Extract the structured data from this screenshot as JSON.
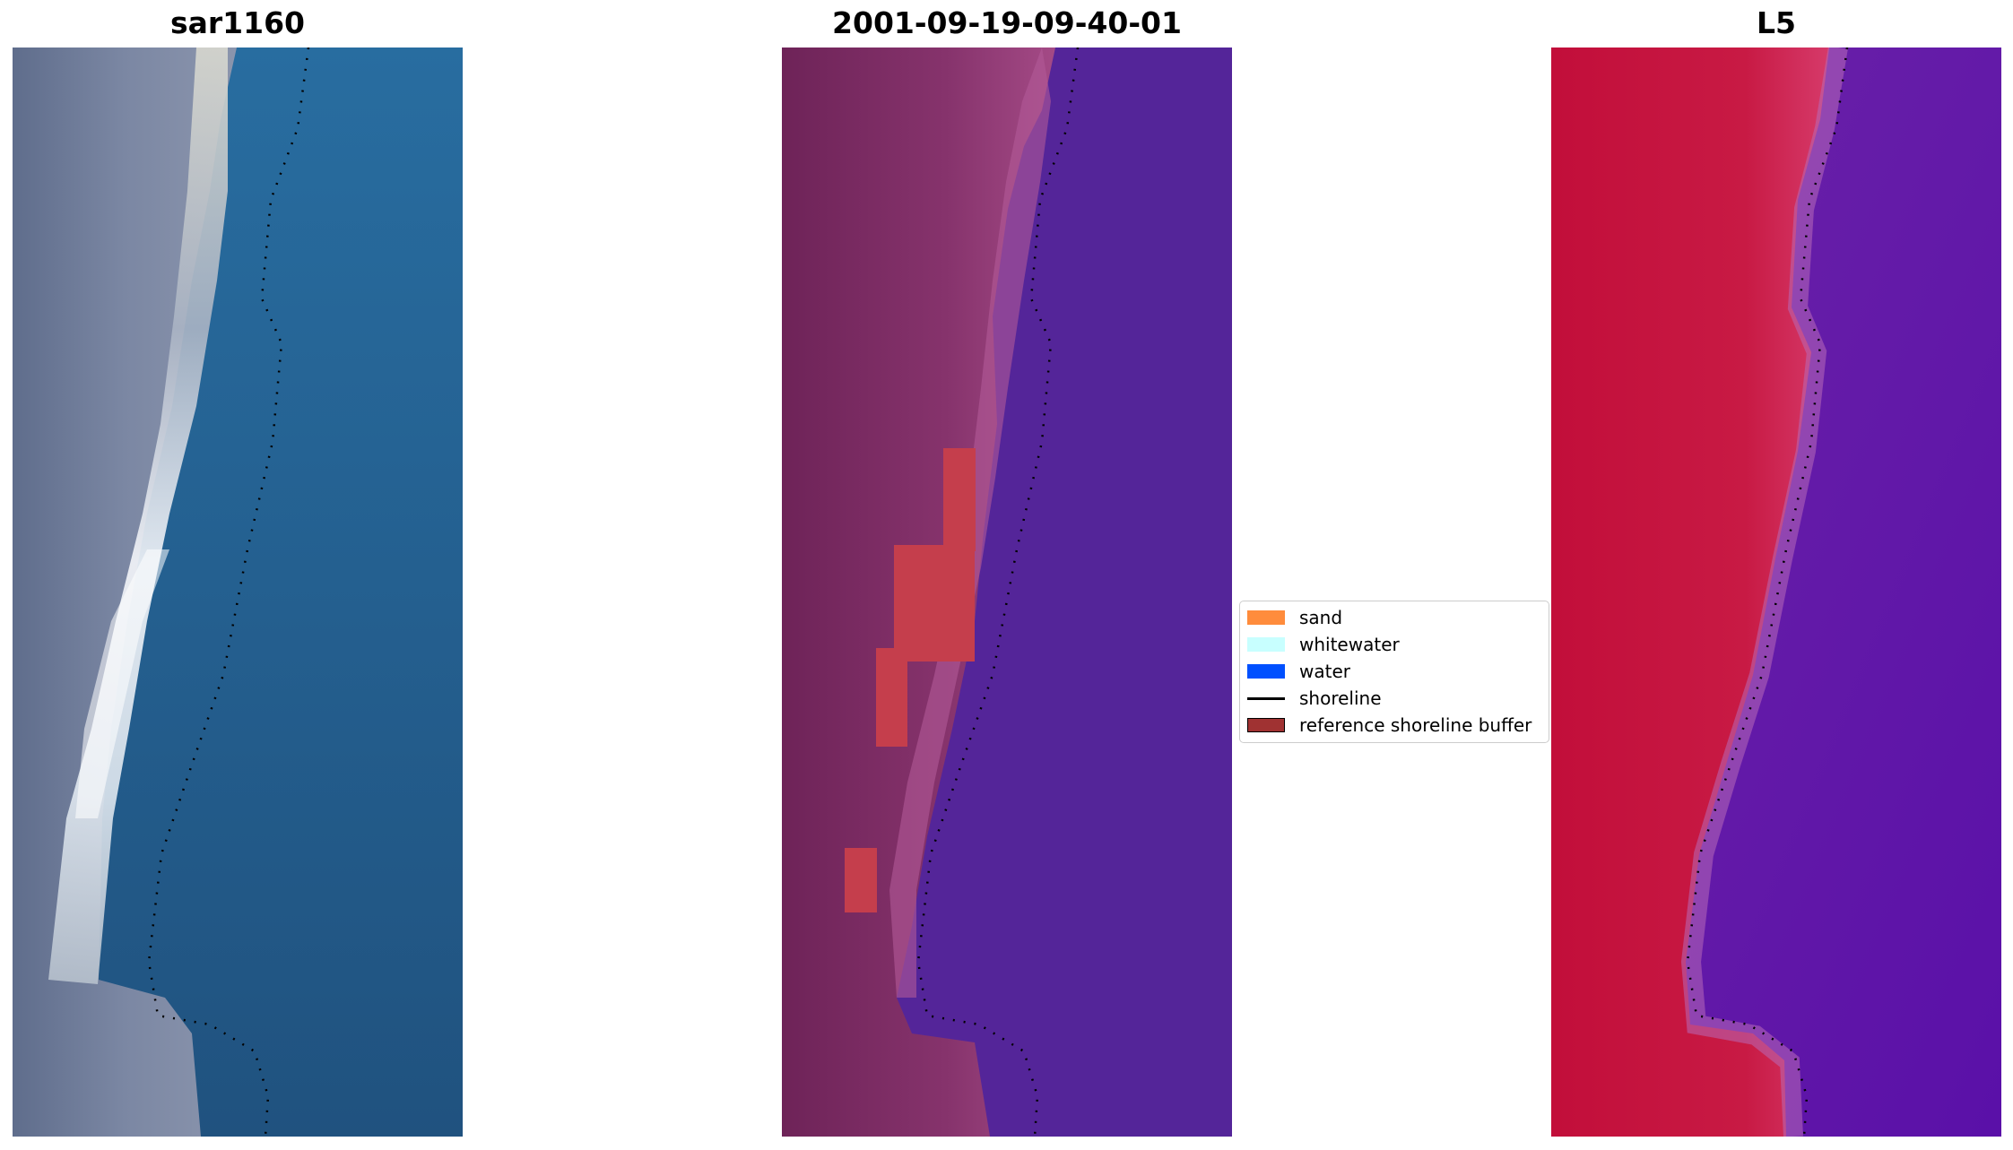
{
  "panels": [
    {
      "title": "sar1160",
      "kind": "rgb"
    },
    {
      "title": "2001-09-19-09-40-01",
      "kind": "classified"
    },
    {
      "title": "L5",
      "kind": "index"
    }
  ],
  "legend": {
    "items": [
      {
        "label": "sand",
        "color": "#ff8c3c",
        "type": "patch"
      },
      {
        "label": "whitewater",
        "color": "#c8ffff",
        "type": "patch"
      },
      {
        "label": "water",
        "color": "#0050ff",
        "type": "patch"
      },
      {
        "label": "shoreline",
        "color": "#000000",
        "type": "line"
      },
      {
        "label": "reference shoreline buffer",
        "color": "#a03232",
        "type": "patch"
      }
    ]
  },
  "colors": {
    "sar_water": "#26689a",
    "sar_land": "#6c7a98",
    "class_land": "#7a2a60",
    "class_water": "#542599",
    "class_buffer": "#c53e4c",
    "index_land": "#c2113c",
    "index_water": "#6a1ea8"
  }
}
